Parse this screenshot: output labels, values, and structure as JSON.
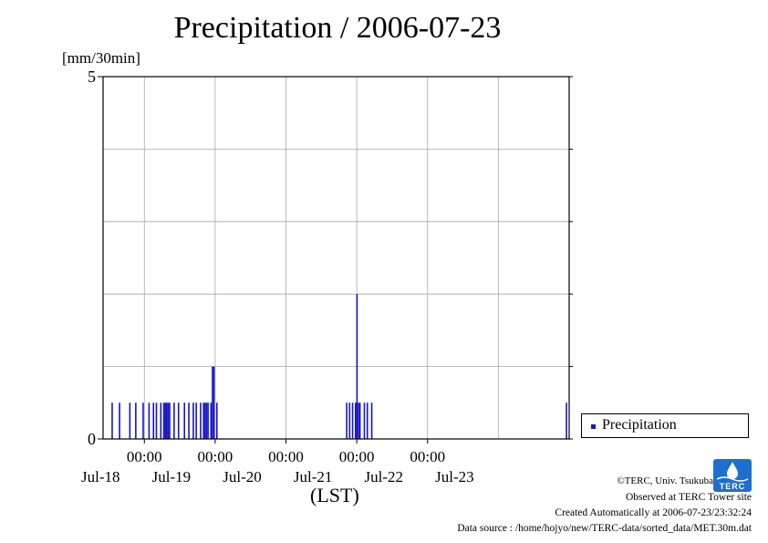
{
  "chart_data": {
    "type": "bar",
    "title": "Precipitation / 2006-07-23",
    "unit_label": "[mm/30min]",
    "xlabel": "(LST)",
    "ylim": [
      0,
      5
    ],
    "y_ticks": [
      0,
      5
    ],
    "grid": true,
    "x_tick_labels": [
      {
        "time": "00:00",
        "date": "Jul-18"
      },
      {
        "time": "00:00",
        "date": "Jul-19"
      },
      {
        "time": "00:00",
        "date": "Jul-20"
      },
      {
        "time": "00:00",
        "date": "Jul-21"
      },
      {
        "time": "00:00",
        "date": "Jul-22"
      },
      {
        "time": "",
        "date": "Jul-23"
      }
    ],
    "legend": {
      "position": "right",
      "entries": [
        "Precipitation"
      ]
    },
    "series": [
      {
        "name": "Precipitation",
        "color": "#1515c8",
        "points": [
          [
            "2006-07-17 13:00",
            0.5
          ],
          [
            "2006-07-17 15:30",
            0.5
          ],
          [
            "2006-07-17 19:00",
            0.5
          ],
          [
            "2006-07-17 21:00",
            0.5
          ],
          [
            "2006-07-17 23:30",
            0.5
          ],
          [
            "2006-07-18 01:30",
            0.5
          ],
          [
            "2006-07-18 03:00",
            0.5
          ],
          [
            "2006-07-18 04:00",
            0.5
          ],
          [
            "2006-07-18 05:30",
            0.5
          ],
          [
            "2006-07-18 06:30",
            0.5
          ],
          [
            "2006-07-18 07:00",
            0.5
          ],
          [
            "2006-07-18 07:30",
            0.5
          ],
          [
            "2006-07-18 08:00",
            0.5
          ],
          [
            "2006-07-18 08:30",
            0.5
          ],
          [
            "2006-07-18 10:00",
            0.5
          ],
          [
            "2006-07-18 11:30",
            0.5
          ],
          [
            "2006-07-18 13:30",
            0.5
          ],
          [
            "2006-07-18 15:00",
            0.5
          ],
          [
            "2006-07-18 16:30",
            0.5
          ],
          [
            "2006-07-18 17:30",
            0.5
          ],
          [
            "2006-07-18 19:00",
            0.5
          ],
          [
            "2006-07-18 20:00",
            0.5
          ],
          [
            "2006-07-18 20:30",
            0.5
          ],
          [
            "2006-07-18 21:00",
            0.5
          ],
          [
            "2006-07-18 21:30",
            0.5
          ],
          [
            "2006-07-18 22:30",
            0.5
          ],
          [
            "2006-07-18 23:00",
            1.0
          ],
          [
            "2006-07-18 23:30",
            1.0
          ],
          [
            "2006-07-19 00:30",
            0.5
          ],
          [
            "2006-07-20 20:30",
            0.5
          ],
          [
            "2006-07-20 21:30",
            0.5
          ],
          [
            "2006-07-20 22:30",
            0.5
          ],
          [
            "2006-07-20 23:30",
            0.5
          ],
          [
            "2006-07-21 00:00",
            2.0
          ],
          [
            "2006-07-21 00:30",
            0.5
          ],
          [
            "2006-07-21 01:00",
            0.5
          ],
          [
            "2006-07-21 02:30",
            0.5
          ],
          [
            "2006-07-21 03:30",
            0.5
          ],
          [
            "2006-07-21 05:00",
            0.5
          ],
          [
            "2006-07-23 23:00",
            0.5
          ]
        ]
      }
    ]
  },
  "footer": {
    "credit": "©TERC, Univ. Tsukuba",
    "observed": "Observed at TERC Tower site",
    "created": "Created Automatically at 2006-07-23/23:32:24",
    "source": "Data source : /home/hojyo/new/TERC-data/sorted_data/MET.30m.dat",
    "logo_text": "TERC"
  },
  "colors": {
    "bar": "#1515c8",
    "grid": "#a8a8a8",
    "logo": "#1f6fd0"
  }
}
